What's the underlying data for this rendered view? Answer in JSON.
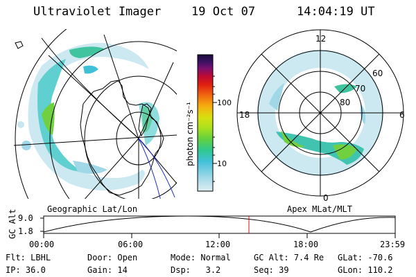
{
  "header": {
    "title": "Ultraviolet Imager",
    "date": "19 Oct 07",
    "time": "14:04:19 UT"
  },
  "left_panel": {
    "label": "Geographic Lat/Lon",
    "map_kind": "orthographic geographic projection over Antarctica with auroral oval emission",
    "gridline_color": "#000000"
  },
  "colorbar": {
    "unit_label": "photon cm⁻²s⁻¹",
    "ticks": [
      "100",
      "10"
    ],
    "colors": [
      "#1a0a3a",
      "#3a1260",
      "#7a1070",
      "#c00a30",
      "#e02010",
      "#f06a10",
      "#f5b010",
      "#d8e010",
      "#a8e020",
      "#60d040",
      "#30c890",
      "#40c0d8",
      "#a0d8e8",
      "#e0eef2"
    ]
  },
  "right_panel": {
    "label": "Apex MLat/MLT",
    "mlt_labels": [
      "12",
      "18",
      "6",
      "0"
    ],
    "mlat_labels": [
      "60",
      "70",
      "80"
    ]
  },
  "timeline": {
    "axis_label": "GC Alt",
    "y_ticks": [
      "9.0",
      "1.8"
    ],
    "x_ticks": [
      "00:00",
      "06:00",
      "12:00",
      "18:00",
      "23:59"
    ],
    "current_time_marker": "14:04",
    "marker_color": "#d01010"
  },
  "info": {
    "row1": [
      {
        "label": "Flt:",
        "value": "LBHL"
      },
      {
        "label": "Door:",
        "value": "Open"
      },
      {
        "label": "Mode:",
        "value": "Normal"
      },
      {
        "label": "GC Alt:",
        "value": "7.4 Re"
      },
      {
        "label": "GLat:",
        "value": "-70.6"
      }
    ],
    "row2": [
      {
        "label": "IP:",
        "value": "36.0"
      },
      {
        "label": "Gain:",
        "value": "14"
      },
      {
        "label": "Dsp:",
        "value": "3.2"
      },
      {
        "label": "Seq:",
        "value": "39"
      },
      {
        "label": "GLon:",
        "value": "110.2"
      }
    ]
  }
}
